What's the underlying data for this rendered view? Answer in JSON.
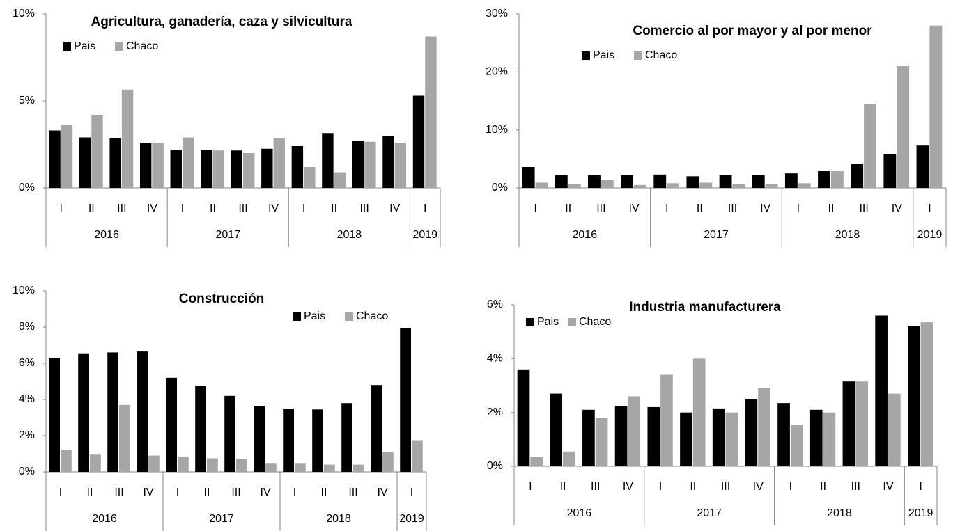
{
  "chart_data": [
    {
      "type": "bar",
      "title": "Agricultura, ganadería, caza y silvicultura",
      "legend": "top-left",
      "groups": [
        {
          "name": "2016",
          "categories": [
            "I",
            "II",
            "III",
            "IV"
          ]
        },
        {
          "name": "2017",
          "categories": [
            "I",
            "II",
            "III",
            "IV"
          ]
        },
        {
          "name": "2018",
          "categories": [
            "I",
            "II",
            "III",
            "IV"
          ]
        },
        {
          "name": "2019",
          "categories": [
            "I"
          ]
        }
      ],
      "series": [
        {
          "name": "Pais",
          "color": "#000000",
          "values": [
            3.3,
            2.9,
            2.85,
            2.6,
            2.2,
            2.2,
            2.15,
            2.25,
            2.4,
            3.15,
            2.7,
            3.0,
            5.3
          ]
        },
        {
          "name": "Chaco",
          "color": "#a6a6a6",
          "values": [
            3.6,
            4.2,
            5.65,
            2.6,
            2.9,
            2.15,
            2.0,
            2.85,
            1.2,
            0.9,
            2.65,
            2.6,
            8.7
          ]
        }
      ],
      "ylim": [
        0,
        10
      ],
      "yticks": [
        {
          "value": 0,
          "label": "0%"
        },
        {
          "value": 5,
          "label": "5%"
        },
        {
          "value": 10,
          "label": "10%"
        }
      ]
    },
    {
      "type": "bar",
      "title": "Comercio al por mayor y al por menor",
      "legend": "top-left",
      "groups": [
        {
          "name": "2016",
          "categories": [
            "I",
            "II",
            "III",
            "IV"
          ]
        },
        {
          "name": "2017",
          "categories": [
            "I",
            "II",
            "III",
            "IV"
          ]
        },
        {
          "name": "2018",
          "categories": [
            "I",
            "II",
            "III",
            "IV"
          ]
        },
        {
          "name": "2019",
          "categories": [
            "I"
          ]
        }
      ],
      "series": [
        {
          "name": "Pais",
          "color": "#000000",
          "values": [
            3.6,
            2.2,
            2.2,
            2.2,
            2.3,
            2.0,
            2.2,
            2.2,
            2.5,
            2.9,
            4.2,
            5.8,
            7.3
          ]
        },
        {
          "name": "Chaco",
          "color": "#a6a6a6",
          "values": [
            0.9,
            0.6,
            1.4,
            0.5,
            0.8,
            0.9,
            0.6,
            0.7,
            0.8,
            3.0,
            14.4,
            21.0,
            28.0
          ]
        }
      ],
      "ylim": [
        0,
        30
      ],
      "yticks": [
        {
          "value": 0,
          "label": "0%"
        },
        {
          "value": 10,
          "label": "10%"
        },
        {
          "value": 20,
          "label": "20%"
        },
        {
          "value": 30,
          "label": "30%"
        }
      ]
    },
    {
      "type": "bar",
      "title": "Construcción",
      "legend": "top-right",
      "groups": [
        {
          "name": "2016",
          "categories": [
            "I",
            "II",
            "III",
            "IV"
          ]
        },
        {
          "name": "2017",
          "categories": [
            "I",
            "II",
            "III",
            "IV"
          ]
        },
        {
          "name": "2018",
          "categories": [
            "I",
            "II",
            "III",
            "IV"
          ]
        },
        {
          "name": "2019",
          "categories": [
            "I"
          ]
        }
      ],
      "series": [
        {
          "name": "Pais",
          "color": "#000000",
          "values": [
            6.3,
            6.55,
            6.6,
            6.65,
            5.2,
            4.75,
            4.2,
            3.65,
            3.5,
            3.45,
            3.8,
            4.8,
            7.95
          ]
        },
        {
          "name": "Chaco",
          "color": "#a6a6a6",
          "values": [
            1.2,
            0.95,
            3.7,
            0.9,
            0.85,
            0.75,
            0.7,
            0.45,
            0.45,
            0.4,
            0.4,
            1.1,
            1.75
          ]
        }
      ],
      "ylim": [
        0,
        10
      ],
      "yticks": [
        {
          "value": 0,
          "label": "0%"
        },
        {
          "value": 2,
          "label": "2%"
        },
        {
          "value": 4,
          "label": "4%"
        },
        {
          "value": 6,
          "label": "6%"
        },
        {
          "value": 8,
          "label": "8%"
        },
        {
          "value": 10,
          "label": "10%"
        }
      ]
    },
    {
      "type": "bar",
      "title": "Industria manufacturera",
      "legend": "top-left",
      "groups": [
        {
          "name": "2016",
          "categories": [
            "I",
            "II",
            "III",
            "IV"
          ]
        },
        {
          "name": "2017",
          "categories": [
            "I",
            "II",
            "III",
            "IV"
          ]
        },
        {
          "name": "2018",
          "categories": [
            "I",
            "II",
            "III",
            "IV"
          ]
        },
        {
          "name": "2019",
          "categories": [
            "I"
          ]
        }
      ],
      "series": [
        {
          "name": "Pais",
          "color": "#000000",
          "values": [
            3.6,
            2.7,
            2.1,
            2.25,
            2.2,
            2.0,
            2.15,
            2.5,
            2.35,
            2.1,
            3.15,
            5.6,
            5.2
          ]
        },
        {
          "name": "Chaco",
          "color": "#a6a6a6",
          "values": [
            0.35,
            0.55,
            1.8,
            2.6,
            3.4,
            4.0,
            2.0,
            2.9,
            1.55,
            2.0,
            3.15,
            2.7,
            5.35
          ]
        }
      ],
      "ylim": [
        0,
        6
      ],
      "yticks": [
        {
          "value": 0,
          "label": "0%"
        },
        {
          "value": 2,
          "label": "2%"
        },
        {
          "value": 4,
          "label": "4%"
        },
        {
          "value": 6,
          "label": "6%"
        }
      ]
    }
  ]
}
